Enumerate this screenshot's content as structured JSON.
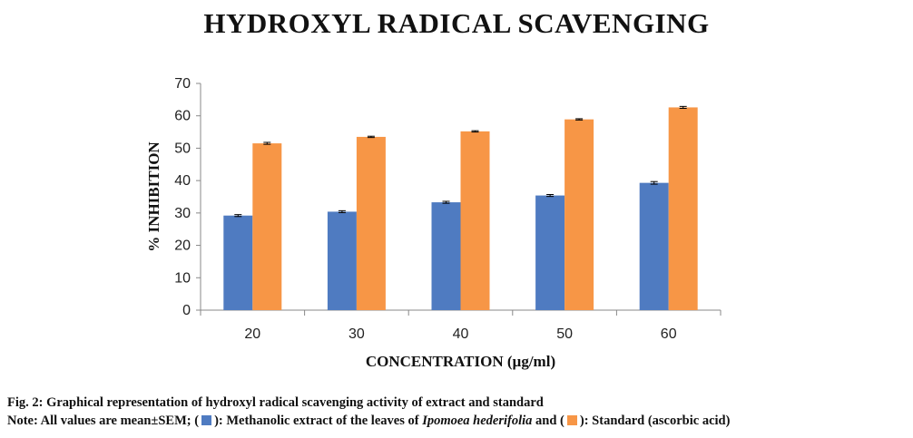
{
  "chart_data": {
    "type": "bar",
    "title": "HYDROXYL RADICAL SCAVENGING",
    "xlabel": "CONCENTRATION  (µg/ml)",
    "ylabel": "% INHIBITION",
    "categories": [
      "20",
      "30",
      "40",
      "50",
      "60"
    ],
    "ylim": [
      0,
      70
    ],
    "yticks": [
      0,
      10,
      20,
      30,
      40,
      50,
      60,
      70
    ],
    "grid": false,
    "legend": "none",
    "series": [
      {
        "values": [
          29.2,
          30.4,
          33.3,
          35.4,
          39.3
        ],
        "errors": [
          0.3,
          0.3,
          0.3,
          0.3,
          0.4
        ],
        "color": "#4F7BC1"
      },
      {
        "values": [
          51.5,
          53.5,
          55.2,
          58.9,
          62.6
        ],
        "errors": [
          0.3,
          0.2,
          0.2,
          0.2,
          0.3
        ],
        "color": "#F79646"
      }
    ]
  },
  "caption": {
    "line1": "Fig. 2: Graphical representation of hydroxyl radical scavenging activity of extract and standard",
    "note_prefix": "Note: All values are mean±SEM; (",
    "note_mid1": "): Methanolic extract of the leaves of ",
    "note_species": "Ipomoea hederifolia",
    "note_mid2": " and (",
    "note_end": "): Standard (ascorbic acid)"
  }
}
